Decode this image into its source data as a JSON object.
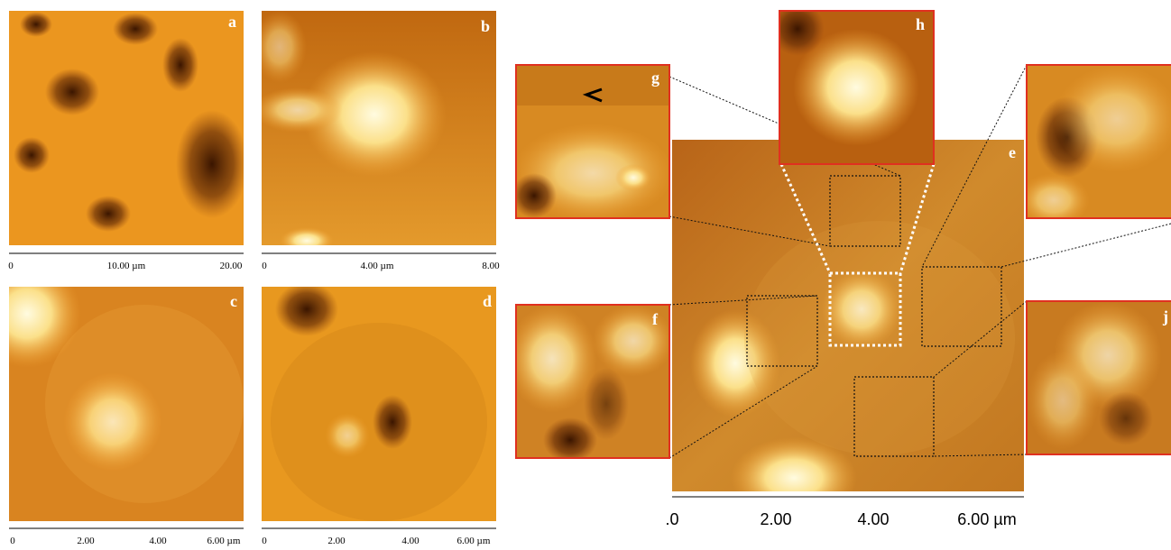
{
  "panels": [
    {
      "label": "a",
      "scale": [
        "0",
        "10.00 µm",
        "20.00"
      ]
    },
    {
      "label": "b",
      "scale": [
        "0",
        "4.00 µm",
        "8.00"
      ]
    },
    {
      "label": "c",
      "scale": [
        "0",
        "2.00",
        "4.00",
        "6.00 µm"
      ]
    },
    {
      "label": "d",
      "scale": [
        "0",
        "2.00",
        "4.00",
        "6.00 µm"
      ]
    },
    {
      "label": "e",
      "scale": [
        ".0",
        "2.00",
        "4.00",
        "6.00 µm"
      ]
    },
    {
      "label": "f"
    },
    {
      "label": "g"
    },
    {
      "label": "h"
    },
    {
      "label": "j"
    }
  ]
}
